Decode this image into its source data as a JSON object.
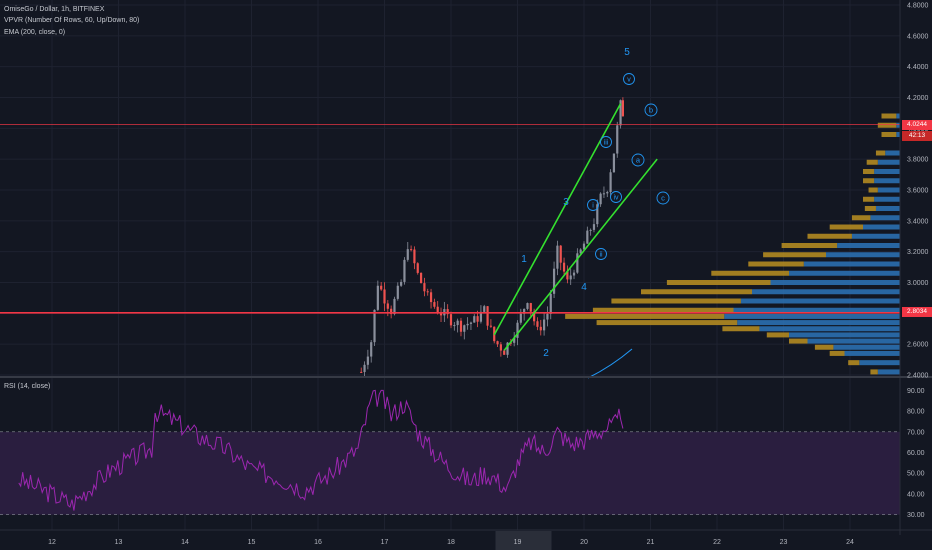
{
  "legend": {
    "symbol_line": "OmiseGo / Dollar, 1h, BITFINEX",
    "vpvr_line": "VPVR (Number Of Rows, 60, Up/Down, 80)",
    "ema_line": "EMA (200, close, 0)",
    "rsi_line": "RSI (14, close)"
  },
  "colors": {
    "background": "#131722",
    "grid": "#1e2230",
    "up_candle": "#8a8f9c",
    "down_candle": "#ef5350",
    "channel": "#34e12f",
    "hline": "#f23645",
    "wave_label": "#2196f3",
    "vp_up": "#2b6fb0",
    "vp_down": "#b28a21",
    "rsi_line": "#9c27b0",
    "rsi_band": "#2a1e3f",
    "price_tag": "#f23645"
  },
  "price_axis": {
    "labels": [
      "4.8000",
      "4.6000",
      "4.4000",
      "4.2000",
      "4.0000",
      "3.8000",
      "3.6000",
      "3.4000",
      "3.2000",
      "3.0000",
      "2.8000",
      "2.6000",
      "2.4000"
    ],
    "current_price": "4.0244",
    "countdown": "42:13",
    "hline_price": "2.8034"
  },
  "rsi_axis": {
    "labels": [
      "90.00",
      "80.00",
      "70.00",
      "60.00",
      "50.00",
      "40.00",
      "30.00"
    ]
  },
  "time_axis": {
    "labels": [
      "12",
      "13",
      "14",
      "15",
      "16",
      "17",
      "18",
      "19",
      "20",
      "21",
      "22",
      "23",
      "24"
    ],
    "highlight": "19"
  },
  "waves": {
    "major": [
      "1",
      "2",
      "3",
      "4",
      "5"
    ],
    "minor": [
      "i",
      "ii",
      "iii",
      "iv",
      "v"
    ],
    "corrective": [
      "a",
      "b",
      "c"
    ]
  },
  "chart_data": {
    "type": "candlestick",
    "title": "OmiseGo / Dollar, 1h, BITFINEX",
    "ylim": [
      2.4,
      4.8
    ],
    "rsi_ylim": [
      25,
      95
    ],
    "x": [
      "12",
      "13",
      "14",
      "15",
      "16",
      "17",
      "18",
      "19",
      "20",
      "21",
      "22",
      "23",
      "24"
    ],
    "hlines": [
      4.0244,
      2.8034
    ],
    "rsi_levels": [
      70,
      30
    ],
    "channel_upper": [
      [
        18.65,
        2.66
      ],
      [
        20.55,
        4.16
      ]
    ],
    "channel_lower": [
      [
        18.8,
        2.56
      ],
      [
        21.1,
        3.8
      ]
    ],
    "price_path": [
      [
        16.65,
        2.42
      ],
      [
        16.8,
        2.62
      ],
      [
        16.9,
        3.0
      ],
      [
        17.0,
        2.9
      ],
      [
        17.1,
        2.82
      ],
      [
        17.25,
        3.0
      ],
      [
        17.35,
        3.25
      ],
      [
        17.5,
        3.05
      ],
      [
        17.65,
        2.9
      ],
      [
        17.8,
        2.82
      ],
      [
        18.0,
        2.76
      ],
      [
        18.15,
        2.72
      ],
      [
        18.35,
        2.75
      ],
      [
        18.5,
        2.82
      ],
      [
        18.65,
        2.62
      ],
      [
        18.8,
        2.56
      ],
      [
        19.0,
        2.72
      ],
      [
        19.15,
        2.9
      ],
      [
        19.3,
        2.68
      ],
      [
        19.45,
        2.8
      ],
      [
        19.6,
        3.2
      ],
      [
        19.75,
        3.0
      ],
      [
        19.9,
        3.15
      ],
      [
        20.05,
        3.3
      ],
      [
        20.15,
        3.4
      ],
      [
        20.25,
        3.55
      ],
      [
        20.35,
        3.62
      ],
      [
        20.45,
        3.85
      ],
      [
        20.55,
        4.15
      ],
      [
        20.62,
        4.05
      ]
    ],
    "rsi_path": [
      [
        11.5,
        47
      ],
      [
        12.0,
        40
      ],
      [
        12.3,
        35
      ],
      [
        12.6,
        44
      ],
      [
        12.9,
        52
      ],
      [
        13.2,
        57
      ],
      [
        13.5,
        62
      ],
      [
        13.55,
        80
      ],
      [
        13.8,
        76
      ],
      [
        14.2,
        68
      ],
      [
        14.6,
        62
      ],
      [
        15.0,
        52
      ],
      [
        15.4,
        48
      ],
      [
        15.8,
        42
      ],
      [
        16.2,
        50
      ],
      [
        16.6,
        62
      ],
      [
        16.8,
        85
      ],
      [
        16.95,
        88
      ],
      [
        17.1,
        78
      ],
      [
        17.3,
        84
      ],
      [
        17.5,
        70
      ],
      [
        17.7,
        62
      ],
      [
        17.9,
        55
      ],
      [
        18.1,
        50
      ],
      [
        18.3,
        46
      ],
      [
        18.5,
        50
      ],
      [
        18.65,
        48
      ],
      [
        18.85,
        42
      ],
      [
        19.0,
        55
      ],
      [
        19.2,
        65
      ],
      [
        19.4,
        60
      ],
      [
        19.6,
        70
      ],
      [
        19.8,
        64
      ],
      [
        20.0,
        66
      ],
      [
        20.2,
        70
      ],
      [
        20.35,
        72
      ],
      [
        20.5,
        74
      ],
      [
        20.55,
        80
      ],
      [
        20.62,
        72
      ]
    ],
    "volume_profile": [
      {
        "price": 4.08,
        "up": 2,
        "down": 8
      },
      {
        "price": 4.02,
        "up": 2,
        "down": 10
      },
      {
        "price": 3.96,
        "up": 2,
        "down": 8
      },
      {
        "price": 3.84,
        "up": 8,
        "down": 5
      },
      {
        "price": 3.78,
        "up": 12,
        "down": 6
      },
      {
        "price": 3.72,
        "up": 14,
        "down": 6
      },
      {
        "price": 3.66,
        "up": 14,
        "down": 6
      },
      {
        "price": 3.6,
        "up": 12,
        "down": 5
      },
      {
        "price": 3.54,
        "up": 14,
        "down": 6
      },
      {
        "price": 3.48,
        "up": 13,
        "down": 6
      },
      {
        "price": 3.42,
        "up": 16,
        "down": 10
      },
      {
        "price": 3.36,
        "up": 20,
        "down": 18
      },
      {
        "price": 3.3,
        "up": 26,
        "down": 24
      },
      {
        "price": 3.24,
        "up": 34,
        "down": 30
      },
      {
        "price": 3.18,
        "up": 40,
        "down": 34
      },
      {
        "price": 3.12,
        "up": 52,
        "down": 30
      },
      {
        "price": 3.06,
        "up": 60,
        "down": 42
      },
      {
        "price": 3.0,
        "up": 70,
        "down": 56
      },
      {
        "price": 2.94,
        "up": 80,
        "down": 60
      },
      {
        "price": 2.88,
        "up": 86,
        "down": 70
      },
      {
        "price": 2.82,
        "up": 90,
        "down": 76
      },
      {
        "price": 2.78,
        "up": 95,
        "down": 86
      },
      {
        "price": 2.74,
        "up": 88,
        "down": 76
      },
      {
        "price": 2.7,
        "up": 76,
        "down": 20
      },
      {
        "price": 2.66,
        "up": 60,
        "down": 12
      },
      {
        "price": 2.62,
        "up": 50,
        "down": 10
      },
      {
        "price": 2.58,
        "up": 36,
        "down": 10
      },
      {
        "price": 2.54,
        "up": 30,
        "down": 8
      },
      {
        "price": 2.48,
        "up": 22,
        "down": 6
      },
      {
        "price": 2.42,
        "up": 12,
        "down": 4
      }
    ]
  }
}
